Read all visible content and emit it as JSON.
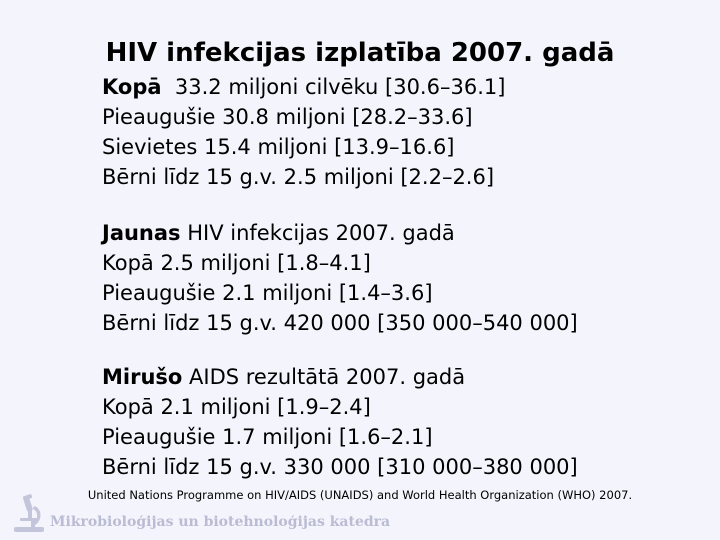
{
  "title": "HIV infekcijas izplatība 2007. gadā",
  "section_total": {
    "line1_bold": "Kopā",
    "line1_rest": "  33.2 miljoni cilvēku [30.6–36.1]",
    "line2": "Pieaugušie 30.8 miljoni [28.2–33.6]",
    "line3": "Sievietes 15.4 miljoni [13.9–16.6]",
    "line4": "Bērni līdz 15 g.v. 2.5 miljoni [2.2–2.6]"
  },
  "section_new": {
    "line1_bold": "Jaunas",
    "line1_rest": " HIV infekcijas 2007. gadā",
    "line2": "Kopā 2.5 miljoni [1.8–4.1]",
    "line3": "Pieaugušie 2.1 miljoni [1.4–3.6]",
    "line4": "Bērni līdz 15 g.v. 420 000 [350 000–540 000]"
  },
  "section_deaths": {
    "line1_bold": "Mirušo",
    "line1_rest": " AIDS rezultātā 2007. gadā",
    "line2": "Kopā 2.1 miljoni [1.9–2.4]",
    "line3": "Pieaugušie 1.7 miljoni [1.6–2.1]",
    "line4": "Bērni līdz 15 g.v. 330 000 [310 000–380 000]"
  },
  "source": "United Nations Programme on HIV/AIDS (UNAIDS) and World Health Organization (WHO) 2007.",
  "footer": {
    "department": "Mikrobioloģijas un biotehnoloģijas katedra",
    "logo_icon": "microscope-icon"
  },
  "colors": {
    "background": "#f4f4fc",
    "footer_text": "#b9bcd2"
  }
}
